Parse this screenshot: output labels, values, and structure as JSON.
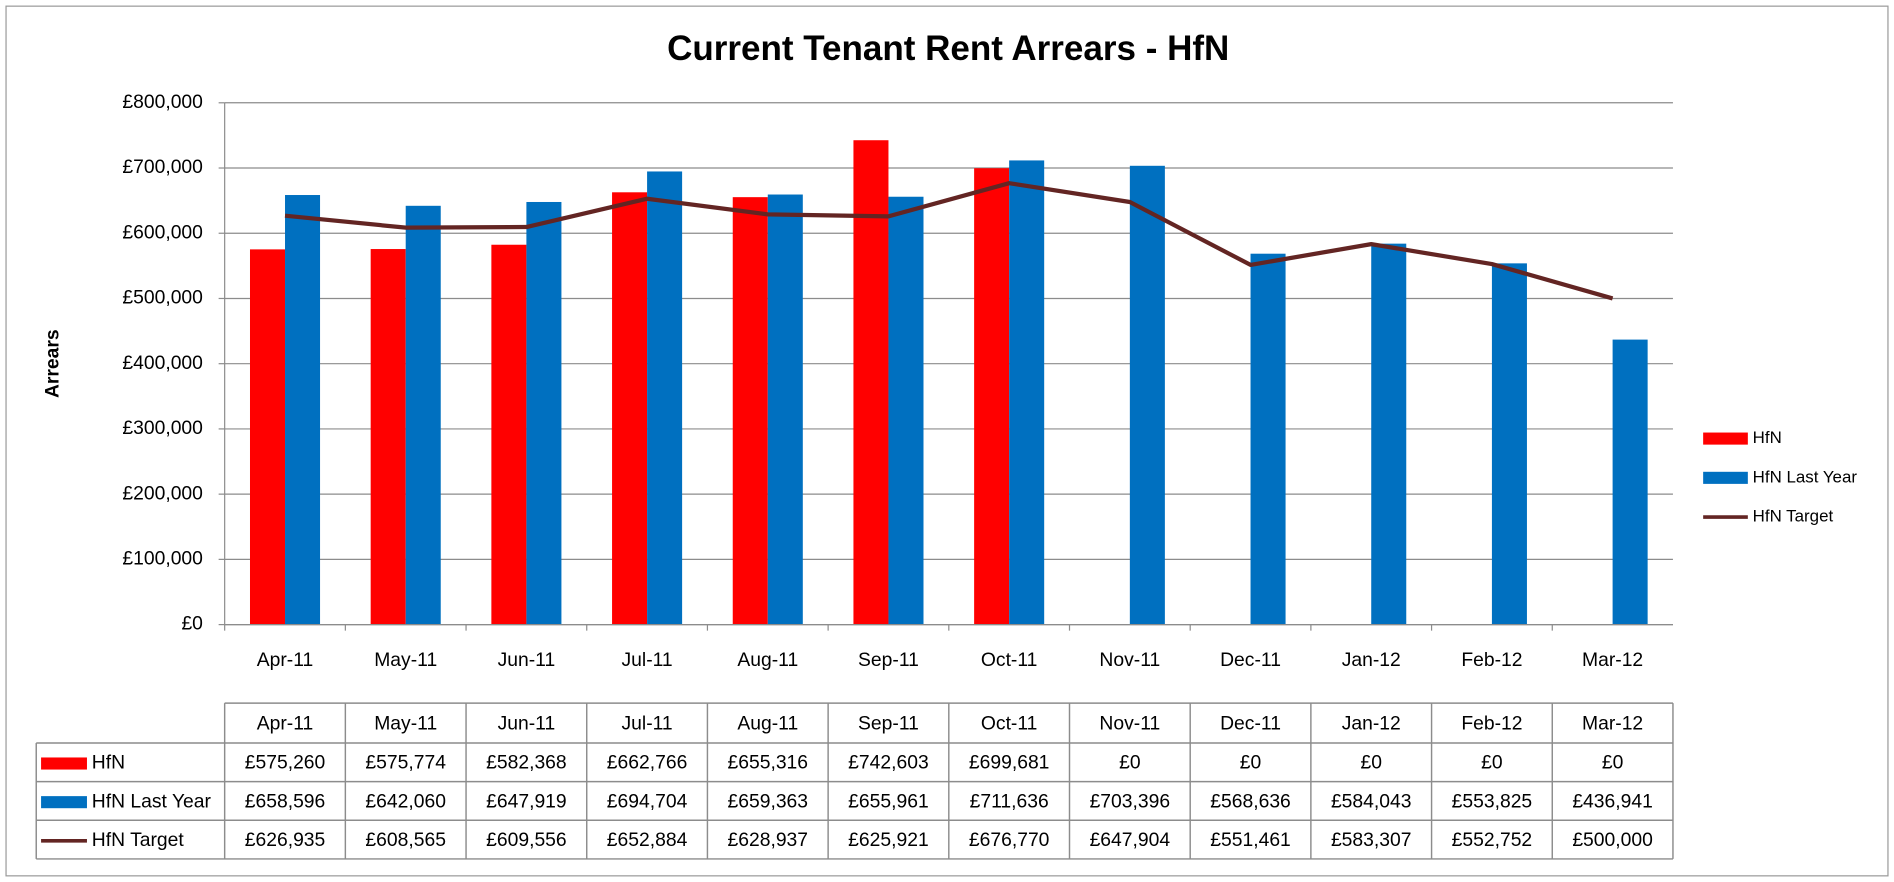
{
  "chart_data": {
    "type": "bar",
    "title": "Current Tenant Rent Arrears - HfN",
    "y_label": "Arrears",
    "categories": [
      "Apr-11",
      "May-11",
      "Jun-11",
      "Jul-11",
      "Aug-11",
      "Sep-11",
      "Oct-11",
      "Nov-11",
      "Dec-11",
      "Jan-12",
      "Feb-12",
      "Mar-12"
    ],
    "series": [
      {
        "name": "HfN",
        "type": "bar",
        "color": "#ff0000",
        "values": [
          575260,
          575774,
          582368,
          662766,
          655316,
          742603,
          699681,
          0,
          0,
          0,
          0,
          0
        ],
        "value_labels": [
          "£575,260",
          "£575,774",
          "£582,368",
          "£662,766",
          "£655,316",
          "£742,603",
          "£699,681",
          "£0",
          "£0",
          "£0",
          "£0",
          "£0"
        ]
      },
      {
        "name": "HfN Last Year",
        "type": "bar",
        "color": "#0070c0",
        "values": [
          658596,
          642060,
          647919,
          694704,
          659363,
          655961,
          711636,
          703396,
          568636,
          584043,
          553825,
          436941
        ],
        "value_labels": [
          "£658,596",
          "£642,060",
          "£647,919",
          "£694,704",
          "£659,363",
          "£655,961",
          "£711,636",
          "£703,396",
          "£568,636",
          "£584,043",
          "£553,825",
          "£436,941"
        ]
      },
      {
        "name": "HfN Target",
        "type": "line",
        "color": "#632523",
        "values": [
          626935,
          608565,
          609556,
          652884,
          628937,
          625921,
          676770,
          647904,
          551461,
          583307,
          552752,
          500000
        ],
        "value_labels": [
          "£626,935",
          "£608,565",
          "£609,556",
          "£652,884",
          "£628,937",
          "£625,921",
          "£676,770",
          "£647,904",
          "£551,461",
          "£583,307",
          "£552,752",
          "£500,000"
        ]
      }
    ],
    "ylim": [
      0,
      800000
    ],
    "yticks": [
      {
        "value": 0,
        "label": "£0"
      },
      {
        "value": 100000,
        "label": "£100,000"
      },
      {
        "value": 200000,
        "label": "£200,000"
      },
      {
        "value": 300000,
        "label": "£300,000"
      },
      {
        "value": 400000,
        "label": "£400,000"
      },
      {
        "value": 500000,
        "label": "£500,000"
      },
      {
        "value": 600000,
        "label": "£600,000"
      },
      {
        "value": 700000,
        "label": "£700,000"
      },
      {
        "value": 800000,
        "label": "£800,000"
      }
    ],
    "grid": true,
    "legend": "right",
    "data_table": true
  }
}
